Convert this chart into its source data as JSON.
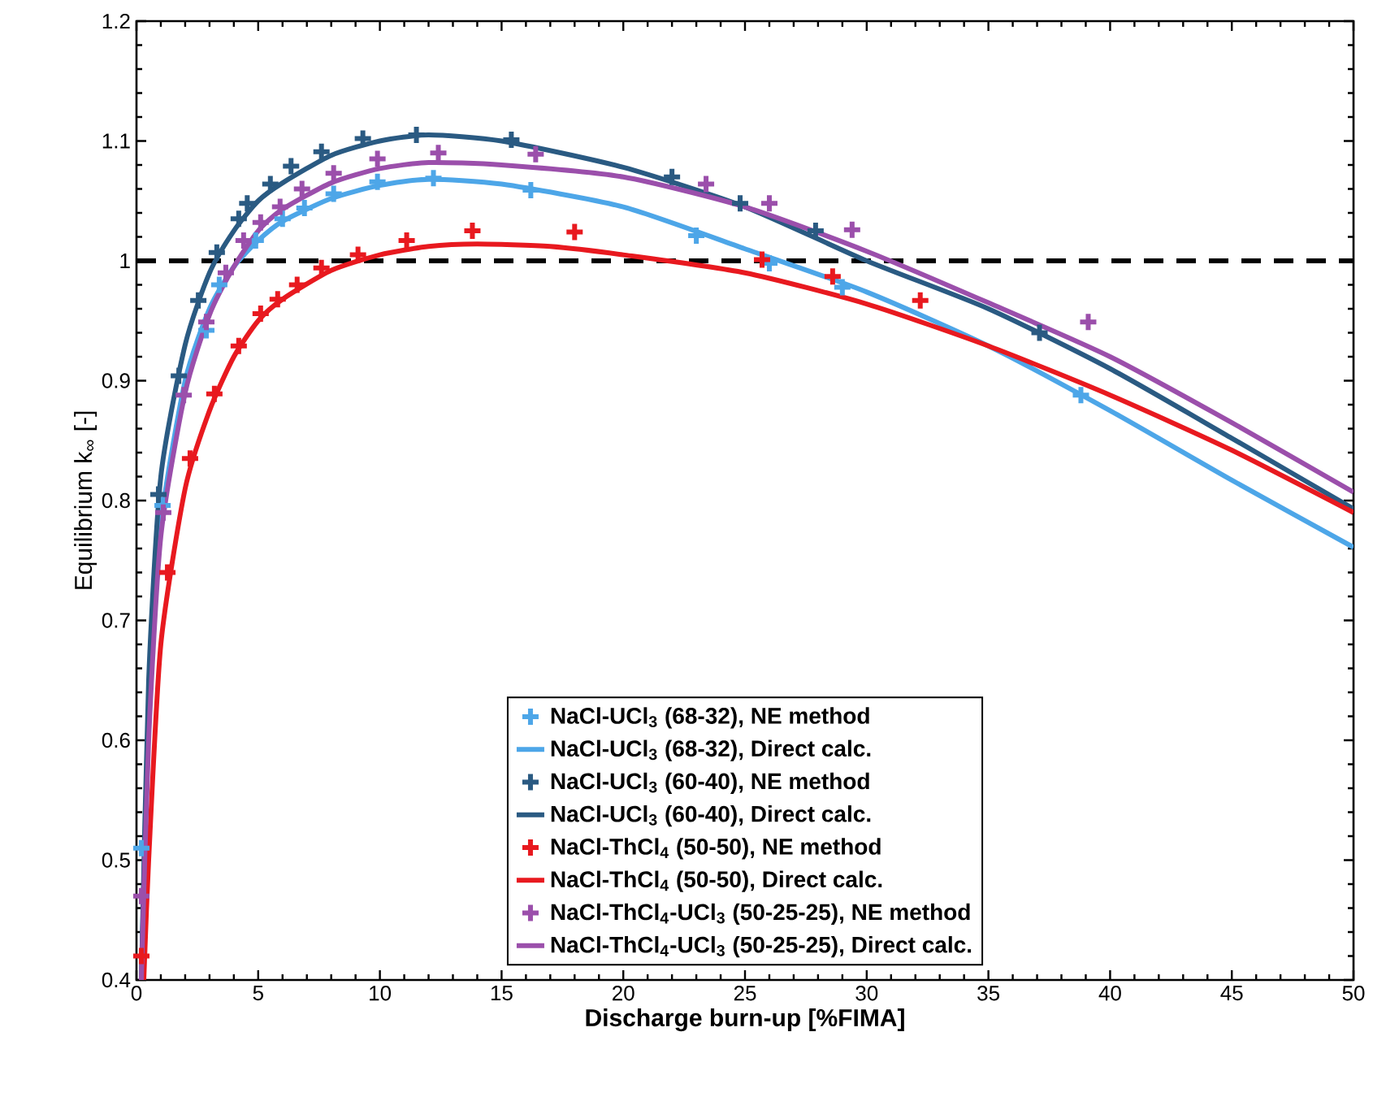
{
  "chart_data": {
    "type": "scatter",
    "xlabel": "Discharge burn-up [%FIMA]",
    "ylabel": "Equilibrium k$_{∞}$ [-]",
    "xlim": [
      0,
      50
    ],
    "ylim": [
      0.4,
      1.2
    ],
    "xticks": [
      0,
      5,
      10,
      15,
      20,
      25,
      30,
      35,
      40,
      45,
      50
    ],
    "yticks": [
      0.4,
      0.5,
      0.6,
      0.7,
      0.8,
      0.9,
      1,
      1.1,
      1.2
    ],
    "legend": "bottom",
    "ref_lines": [
      {
        "axis": "y",
        "value": 1,
        "color": "#000000",
        "line_style": "dashed"
      }
    ],
    "series": [
      {
        "name": "NaCl-UCl$_{3}$ (68-32), NE method",
        "marker": "cross",
        "color": "#4da6e8",
        "x": [
          0.2,
          1.07,
          2.87,
          3.4,
          4.9,
          6.0,
          6.9,
          8.1,
          9.9,
          12.2,
          16.2,
          23.0,
          26.0,
          29.0,
          38.8
        ],
        "values": [
          0.51,
          0.796,
          0.942,
          0.98,
          1.017,
          1.035,
          1.044,
          1.056,
          1.066,
          1.069,
          1.059,
          1.021,
          0.998,
          0.978,
          0.888
        ]
      },
      {
        "name": "NaCl-UCl$_{3}$ (68-32), Direct calc.",
        "type": "line",
        "marker": "none",
        "line_style": "solid",
        "color": "#4da6e8",
        "x": [
          0.2,
          0.5,
          1,
          2,
          3,
          4,
          5,
          6,
          8,
          10,
          12,
          15,
          20,
          25,
          30,
          35,
          40,
          45,
          50
        ],
        "values": [
          0.4,
          0.62,
          0.78,
          0.9,
          0.96,
          0.995,
          1.017,
          1.033,
          1.052,
          1.063,
          1.068,
          1.064,
          1.045,
          1.01,
          0.974,
          0.929,
          0.875,
          0.817,
          0.761
        ]
      },
      {
        "name": "NaCl-UCl$_{3}$ (60-40), NE method",
        "marker": "cross",
        "color": "#2a5a82",
        "x": [
          0.9,
          1.74,
          2.54,
          3.3,
          4.2,
          4.55,
          5.5,
          6.35,
          7.6,
          9.3,
          11.5,
          15.4,
          22.0,
          24.8,
          27.9,
          37.1
        ],
        "values": [
          0.805,
          0.904,
          0.967,
          1.007,
          1.035,
          1.048,
          1.064,
          1.079,
          1.091,
          1.102,
          1.105,
          1.101,
          1.07,
          1.048,
          1.025,
          0.94
        ]
      },
      {
        "name": "NaCl-UCl$_{3}$ (60-40), Direct calc.",
        "type": "line",
        "marker": "none",
        "line_style": "solid",
        "color": "#2a5a82",
        "x": [
          0.2,
          0.5,
          1,
          2,
          3,
          4,
          5,
          6,
          8,
          10,
          12,
          15,
          20,
          25,
          30,
          35,
          40,
          45,
          50
        ],
        "values": [
          0.4,
          0.65,
          0.82,
          0.93,
          0.99,
          1.025,
          1.05,
          1.065,
          1.088,
          1.1,
          1.105,
          1.1,
          1.078,
          1.045,
          1.0,
          0.96,
          0.91,
          0.852,
          0.793
        ]
      },
      {
        "name": "NaCl-ThCl$_{4}$ (50-50), NE method",
        "marker": "cross",
        "color": "#e8191f",
        "x": [
          0.2,
          1.27,
          2.2,
          3.2,
          4.2,
          5.1,
          5.8,
          6.6,
          7.6,
          9.1,
          11.1,
          13.8,
          18.0,
          25.7,
          28.6,
          32.2
        ],
        "values": [
          0.42,
          0.74,
          0.835,
          0.889,
          0.929,
          0.956,
          0.968,
          0.98,
          0.994,
          1.005,
          1.017,
          1.025,
          1.024,
          1.001,
          0.987,
          0.967
        ]
      },
      {
        "name": "NaCl-ThCl$_{4}$ (50-50), Direct calc.",
        "type": "line",
        "marker": "none",
        "line_style": "solid",
        "color": "#e8191f",
        "x": [
          0.3,
          0.5,
          1,
          2,
          3,
          4,
          5,
          6,
          8,
          10,
          12,
          14,
          17,
          20,
          25,
          30,
          35,
          40,
          45,
          50
        ],
        "values": [
          0.4,
          0.5,
          0.68,
          0.81,
          0.875,
          0.92,
          0.95,
          0.968,
          0.992,
          1.005,
          1.012,
          1.014,
          1.012,
          1.005,
          0.99,
          0.964,
          0.929,
          0.888,
          0.842,
          0.79
        ]
      },
      {
        "name": "NaCl-ThCl$_{4}$-UCl$_{3}$ (50-25-25), NE method",
        "marker": "cross",
        "color": "#9b4fab",
        "x": [
          0.2,
          1.1,
          1.94,
          2.87,
          3.67,
          4.4,
          5.1,
          5.9,
          6.8,
          8.1,
          9.9,
          12.4,
          16.4,
          23.4,
          26.0,
          29.4,
          39.1
        ],
        "values": [
          0.47,
          0.79,
          0.888,
          0.949,
          0.99,
          1.017,
          1.032,
          1.045,
          1.06,
          1.073,
          1.085,
          1.09,
          1.089,
          1.064,
          1.048,
          1.026,
          0.949
        ]
      },
      {
        "name": "NaCl-ThCl$_{4}$-UCl$_{3}$ (50-25-25), Direct calc.",
        "type": "line",
        "marker": "none",
        "line_style": "solid",
        "color": "#9b4fab",
        "x": [
          0.2,
          0.5,
          1,
          2,
          3,
          4,
          5,
          6,
          8,
          10,
          12,
          15,
          20,
          25,
          30,
          35,
          40,
          45,
          50
        ],
        "values": [
          0.4,
          0.6,
          0.77,
          0.89,
          0.955,
          0.995,
          1.025,
          1.043,
          1.065,
          1.077,
          1.082,
          1.08,
          1.07,
          1.045,
          1.008,
          0.965,
          0.92,
          0.865,
          0.807
        ]
      }
    ]
  }
}
